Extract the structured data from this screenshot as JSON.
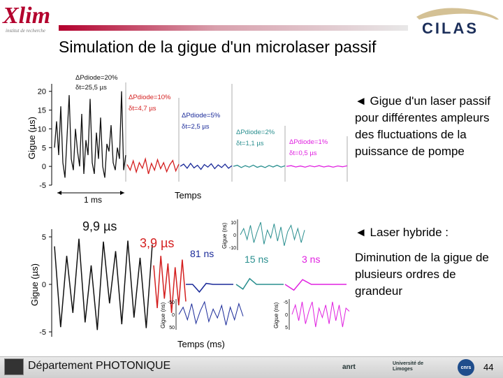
{
  "header": {
    "xlim_logo_text": "Xlim",
    "xlim_tagline": "institut de recherche",
    "cilas_logo_text": "CILAS"
  },
  "slide": {
    "title": "Simulation de la gigue d'un microlaser passif",
    "bullet_1": "◄ Gigue d'un laser passif pour différentes ampleurs des fluctuations de la puissance de pompe",
    "bullet_2": "◄ Laser hybride :",
    "paragraph_2": "Diminution de la gigue de plusieurs ordres de grandeur"
  },
  "footer": {
    "department": "Département PHOTONIQUE",
    "logo_anrt": "anrt",
    "logo_unilim": "Université de Limoges",
    "logo_cnrs": "cnrs",
    "page_number": "44"
  },
  "chart_data": [
    {
      "type": "line",
      "ylabel": "Gigue (µs)",
      "xlabel": "Temps",
      "scale_bar": "1 ms",
      "yticks": [
        "20",
        "15",
        "10",
        "5",
        "0",
        "-5"
      ],
      "ylim": [
        -5,
        22
      ],
      "segments": [
        {
          "label_dp": "ΔPdiode=20%",
          "label_dt": "δt=25,5 µs",
          "color": "#111111",
          "values": [
            5,
            12,
            3,
            16,
            1,
            -3,
            8,
            19,
            2,
            -1,
            10,
            4,
            0,
            14,
            -2,
            7,
            3,
            18,
            1,
            -2,
            9,
            2,
            13,
            0,
            -3,
            6,
            4,
            11,
            1,
            -1,
            5,
            2,
            20,
            -1,
            3
          ]
        },
        {
          "label_dp": "ΔPdiode=10%",
          "label_dt": "δt=4,7 µs",
          "color": "#d42020",
          "values": [
            0.5,
            -1,
            1.5,
            -1.5,
            1,
            -0.5,
            2,
            -2,
            0.8,
            -1,
            1.8,
            -0.6,
            1,
            -1.4,
            0.4,
            1.6,
            -1.2,
            0.6
          ]
        },
        {
          "label_dp": "ΔPdiode=5%",
          "label_dt": "δt=2,5 µs",
          "color": "#1a2a99",
          "values": [
            0,
            0.6,
            -0.5,
            0.8,
            -0.4,
            0.3,
            -0.8,
            0.5,
            -0.2,
            0.7,
            -0.6,
            0.4,
            -0.3,
            0.6,
            -0.5,
            0.2
          ]
        },
        {
          "label_dp": "ΔPdiode=2%",
          "label_dt": "δt=1,1 µs",
          "color": "#2a8f8f",
          "values": [
            0,
            0.3,
            -0.3,
            0.2,
            -0.2,
            0.35,
            -0.25,
            0.1,
            -0.3,
            0.25,
            -0.15,
            0.3,
            -0.2,
            0.15
          ]
        },
        {
          "label_dp": "ΔPdiode=1%",
          "label_dt": "δt=0,5 µs",
          "color": "#e020e0",
          "values": [
            0,
            0.2,
            -0.15,
            0.1,
            -0.2,
            0.15,
            -0.1,
            0.2,
            -0.15,
            0.1,
            -0.2,
            0.12,
            -0.1,
            0.15
          ]
        }
      ]
    },
    {
      "type": "line",
      "ylabel": "Gigue (µs)",
      "xlabel": "Temps (ms)",
      "yticks": [
        "5",
        "0",
        "-5"
      ],
      "ylim": [
        -5,
        5
      ],
      "segments": [
        {
          "label": "9,9 µs",
          "color": "#111111",
          "values": [
            4,
            -4.5,
            3,
            -3,
            4.8,
            -4,
            2,
            -4.8,
            4.5,
            -2,
            3.5,
            -4.2,
            4.6,
            -3.5,
            2.8,
            -4.6,
            4.2
          ]
        },
        {
          "label": "3,9 µs",
          "color": "#d42020",
          "values": [
            2,
            -2.5,
            3,
            -1.5,
            2.2,
            -3,
            1.8,
            -2.2,
            2.6,
            -1.8
          ]
        },
        {
          "label": "81 ns",
          "color": "#1a2a99",
          "values": [
            0,
            0,
            -0.8,
            0.1,
            0,
            0,
            0,
            0
          ]
        },
        {
          "label": "15 ns",
          "color": "#2a8f8f",
          "values": [
            0,
            -0.5,
            0.6,
            0,
            0,
            0,
            0,
            0
          ]
        },
        {
          "label": "3 ns",
          "color": "#e020e0",
          "values": [
            0,
            -0.6,
            0.5,
            0,
            0,
            0,
            0,
            0
          ]
        }
      ],
      "insets": [
        {
          "ylabel": "Gigue (ns)",
          "yticks": [
            "10",
            "0",
            "-10"
          ],
          "color": "#2a8f8f",
          "values": [
            0,
            4,
            -3,
            6,
            -5,
            2,
            8,
            -6,
            3,
            -2,
            7,
            -4,
            5,
            -7,
            2,
            6,
            -3,
            4,
            -5,
            3
          ]
        },
        {
          "ylabel": "Gigue (ns)",
          "yticks": [
            "-50",
            "0",
            "50"
          ],
          "color": "#1a2a99",
          "values": [
            0,
            20,
            -15,
            30,
            -25,
            10,
            35,
            -20,
            15,
            -10,
            25,
            -30,
            20,
            -15,
            30,
            -5
          ]
        },
        {
          "ylabel": "Gigue (ns)",
          "yticks": [
            "-5",
            "0",
            "5"
          ],
          "color": "#e020e0",
          "values": [
            0,
            3,
            -2,
            4,
            -3,
            1,
            4,
            -4,
            2,
            -1,
            3,
            -3,
            4,
            -2,
            3,
            -4,
            2,
            1
          ]
        }
      ]
    }
  ]
}
